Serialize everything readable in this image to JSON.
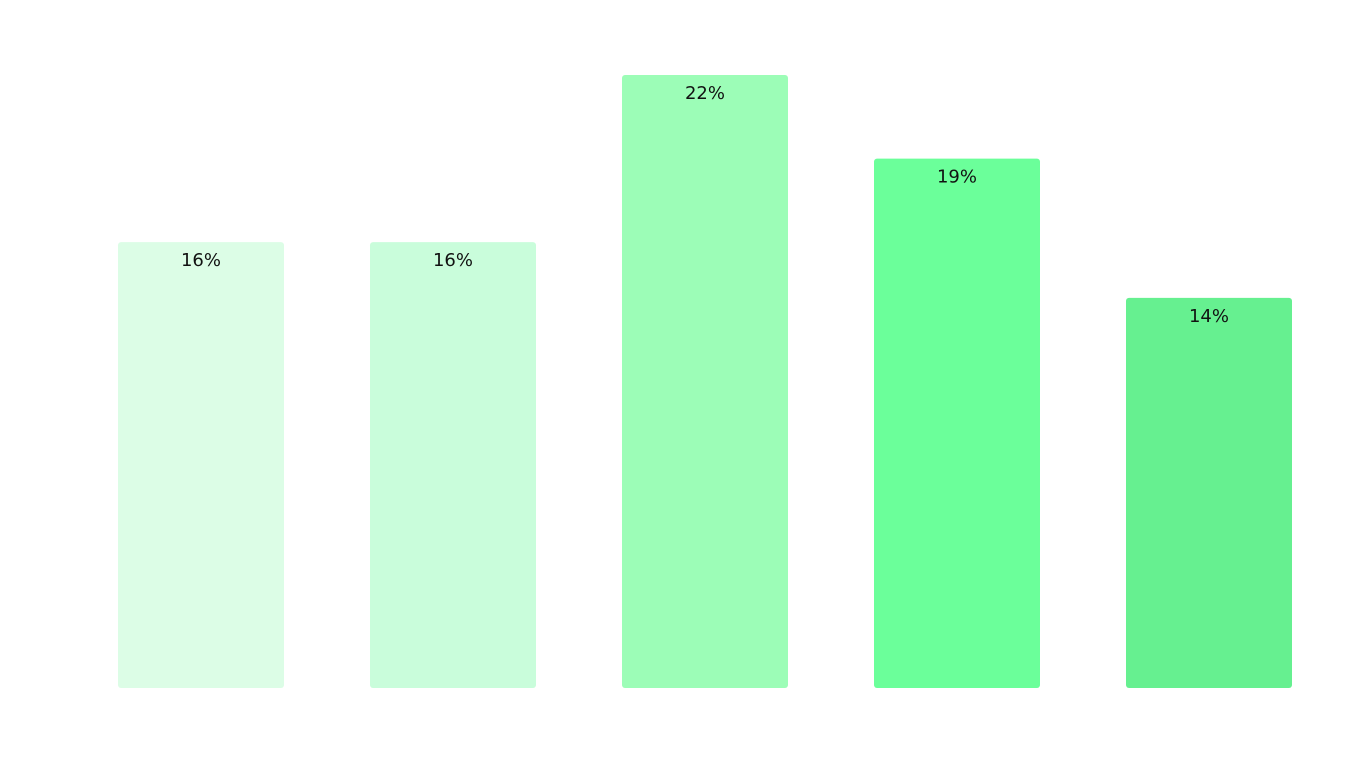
{
  "chart_data": {
    "type": "bar",
    "title": "",
    "xlabel": "",
    "ylabel": "",
    "ylim": [
      0,
      22
    ],
    "grid": false,
    "legend": "none",
    "values": [
      16,
      16,
      22,
      19,
      14
    ],
    "data_labels": [
      "16%",
      "16%",
      "22%",
      "19%",
      "14%"
    ],
    "colors": [
      "#dcfde6",
      "#c9fddb",
      "#9cfdb7",
      "#6bff9a",
      "#66f090"
    ]
  }
}
